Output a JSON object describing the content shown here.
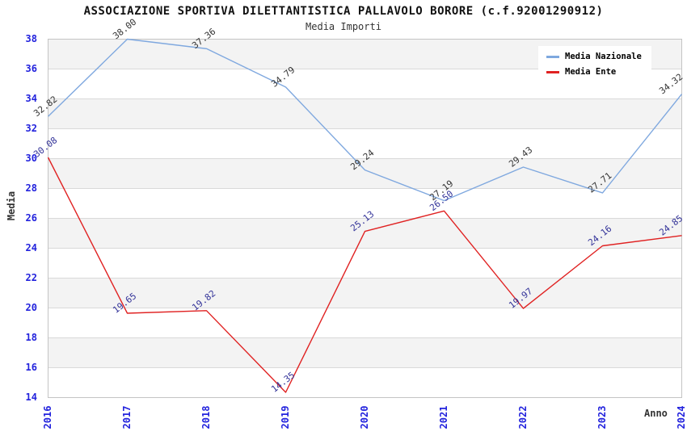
{
  "chart_data": {
    "type": "line",
    "title": "ASSOCIAZIONE SPORTIVA DILETTANTISTICA PALLAVOLO BORORE (c.f.92001290912)",
    "subtitle": "Media Importi",
    "xlabel": "Anno",
    "ylabel": "Media",
    "x": [
      2016,
      2017,
      2018,
      2019,
      2020,
      2021,
      2022,
      2023,
      2024
    ],
    "series": [
      {
        "name": "Media Nazionale",
        "color": "#7fa8df",
        "label_color": "#333333",
        "values": [
          32.82,
          38.0,
          37.36,
          34.79,
          29.24,
          27.19,
          29.43,
          27.71,
          34.32
        ]
      },
      {
        "name": "Media Ente",
        "color": "#e02222",
        "label_color": "#333399",
        "values": [
          30.08,
          19.65,
          19.82,
          14.35,
          25.13,
          26.5,
          19.97,
          24.16,
          24.85
        ]
      }
    ],
    "ylim": [
      14,
      38
    ],
    "ytick_step": 2,
    "point_labels": true,
    "label_decimals": 2,
    "grid": "horizontal",
    "legend_position": "top-right",
    "ytick_color": "#2222dd",
    "xtick_color": "#2222dd",
    "band_fill": "#f3f3f3",
    "grid_color": "#d9d9d9",
    "plot_border_color": "#c4c4c4",
    "background_color": "#ffffff"
  }
}
